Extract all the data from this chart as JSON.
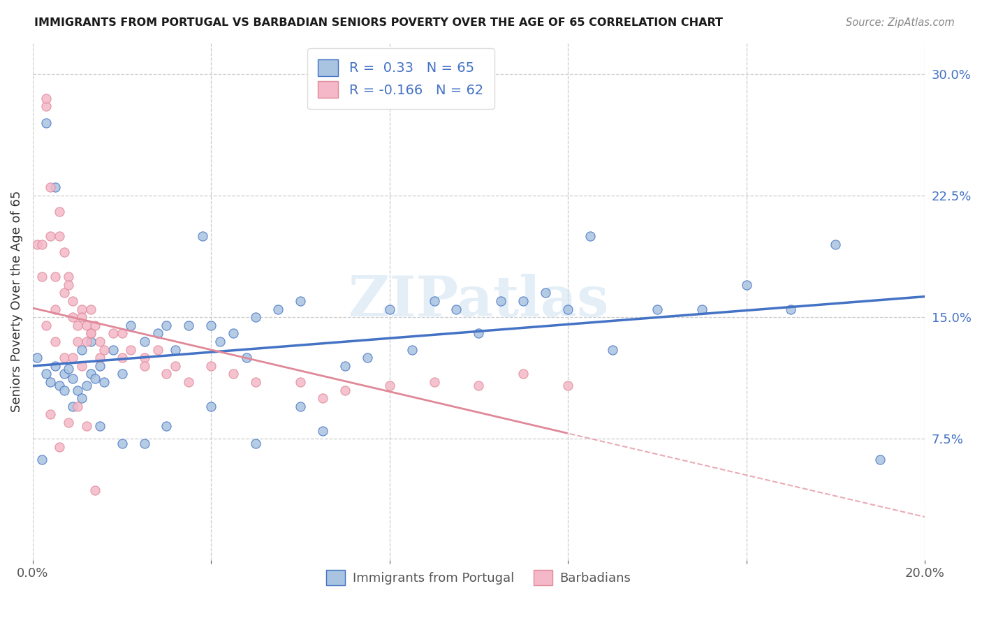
{
  "title": "IMMIGRANTS FROM PORTUGAL VS BARBADIAN SENIORS POVERTY OVER THE AGE OF 65 CORRELATION CHART",
  "source": "Source: ZipAtlas.com",
  "ylabel": "Seniors Poverty Over the Age of 65",
  "xlim": [
    0.0,
    0.2
  ],
  "ylim": [
    0.0,
    0.32
  ],
  "xtick_positions": [
    0.0,
    0.04,
    0.08,
    0.12,
    0.16,
    0.2
  ],
  "xticklabels": [
    "0.0%",
    "",
    "",
    "",
    "",
    "20.0%"
  ],
  "yticks_right": [
    0.075,
    0.15,
    0.225,
    0.3
  ],
  "ytick_labels_right": [
    "7.5%",
    "15.0%",
    "22.5%",
    "30.0%"
  ],
  "R_blue": 0.33,
  "N_blue": 65,
  "R_pink": -0.166,
  "N_pink": 62,
  "legend_label_blue": "Immigrants from Portugal",
  "legend_label_pink": "Barbadians",
  "color_blue": "#a8c4e0",
  "color_pink": "#f4b8c8",
  "line_color_blue": "#4472c4",
  "line_color_pink": "#e08898",
  "watermark": "ZIPatlas",
  "blue_scatter_x": [
    0.001,
    0.002,
    0.003,
    0.004,
    0.005,
    0.006,
    0.007,
    0.008,
    0.009,
    0.01,
    0.011,
    0.012,
    0.013,
    0.014,
    0.015,
    0.016,
    0.018,
    0.02,
    0.022,
    0.025,
    0.028,
    0.03,
    0.032,
    0.035,
    0.038,
    0.04,
    0.042,
    0.045,
    0.048,
    0.05,
    0.055,
    0.06,
    0.065,
    0.07,
    0.075,
    0.08,
    0.085,
    0.09,
    0.095,
    0.1,
    0.105,
    0.11,
    0.115,
    0.12,
    0.125,
    0.13,
    0.14,
    0.15,
    0.16,
    0.17,
    0.18,
    0.003,
    0.005,
    0.007,
    0.009,
    0.011,
    0.013,
    0.015,
    0.02,
    0.025,
    0.03,
    0.04,
    0.05,
    0.06,
    0.19
  ],
  "blue_scatter_y": [
    0.125,
    0.062,
    0.115,
    0.11,
    0.12,
    0.108,
    0.115,
    0.118,
    0.112,
    0.105,
    0.13,
    0.108,
    0.115,
    0.112,
    0.12,
    0.11,
    0.13,
    0.115,
    0.145,
    0.135,
    0.14,
    0.145,
    0.13,
    0.145,
    0.2,
    0.145,
    0.135,
    0.14,
    0.125,
    0.15,
    0.155,
    0.16,
    0.08,
    0.12,
    0.125,
    0.155,
    0.13,
    0.16,
    0.155,
    0.14,
    0.16,
    0.16,
    0.165,
    0.155,
    0.2,
    0.13,
    0.155,
    0.155,
    0.17,
    0.155,
    0.195,
    0.27,
    0.23,
    0.105,
    0.095,
    0.1,
    0.135,
    0.083,
    0.072,
    0.072,
    0.083,
    0.095,
    0.072,
    0.095,
    0.062
  ],
  "pink_scatter_x": [
    0.001,
    0.002,
    0.003,
    0.003,
    0.004,
    0.004,
    0.005,
    0.005,
    0.006,
    0.006,
    0.007,
    0.007,
    0.008,
    0.008,
    0.009,
    0.009,
    0.01,
    0.01,
    0.011,
    0.011,
    0.012,
    0.012,
    0.013,
    0.013,
    0.014,
    0.015,
    0.016,
    0.018,
    0.02,
    0.022,
    0.025,
    0.028,
    0.03,
    0.032,
    0.035,
    0.04,
    0.045,
    0.05,
    0.06,
    0.065,
    0.07,
    0.08,
    0.09,
    0.1,
    0.11,
    0.12,
    0.003,
    0.005,
    0.007,
    0.009,
    0.011,
    0.013,
    0.015,
    0.02,
    0.025,
    0.002,
    0.004,
    0.006,
    0.008,
    0.01,
    0.012,
    0.014
  ],
  "pink_scatter_y": [
    0.195,
    0.175,
    0.28,
    0.285,
    0.2,
    0.23,
    0.175,
    0.155,
    0.215,
    0.2,
    0.19,
    0.165,
    0.175,
    0.17,
    0.16,
    0.15,
    0.145,
    0.135,
    0.155,
    0.15,
    0.145,
    0.135,
    0.155,
    0.14,
    0.145,
    0.125,
    0.13,
    0.14,
    0.14,
    0.13,
    0.125,
    0.13,
    0.115,
    0.12,
    0.11,
    0.12,
    0.115,
    0.11,
    0.11,
    0.1,
    0.105,
    0.108,
    0.11,
    0.108,
    0.115,
    0.108,
    0.145,
    0.135,
    0.125,
    0.125,
    0.12,
    0.14,
    0.135,
    0.125,
    0.12,
    0.195,
    0.09,
    0.07,
    0.085,
    0.095,
    0.083,
    0.043
  ]
}
